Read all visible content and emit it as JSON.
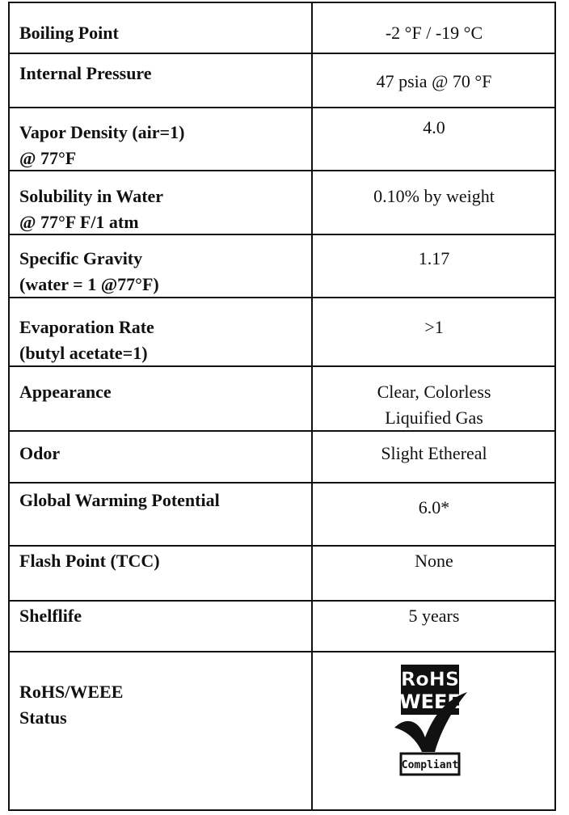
{
  "table": {
    "rows": [
      {
        "label": [
          "Boiling Point"
        ],
        "value": [
          "-2 °F / -19 °C"
        ]
      },
      {
        "label": [
          "Internal Pressure"
        ],
        "value": [
          "47 psia @ 70 °F"
        ]
      },
      {
        "label": [
          "Vapor Density (air=1)",
          "@ 77°F"
        ],
        "value": [
          "4.0"
        ]
      },
      {
        "label": [
          "Solubility in Water",
          "@ 77°F F/1 atm"
        ],
        "value": [
          "0.10% by weight"
        ]
      },
      {
        "label": [
          "Specific Gravity",
          "(water = 1 @77°F)"
        ],
        "value": [
          "1.17"
        ]
      },
      {
        "label": [
          "Evaporation Rate",
          "(butyl acetate=1)"
        ],
        "value": [
          ">1"
        ]
      },
      {
        "label": [
          "Appearance"
        ],
        "value": [
          "Clear, Colorless",
          "Liquified Gas"
        ]
      },
      {
        "label": [
          "Odor"
        ],
        "value": [
          "Slight Ethereal"
        ]
      },
      {
        "label": [
          "Global Warming Potential"
        ],
        "value": [
          "6.0*"
        ]
      },
      {
        "label": [
          "Flash Point (TCC)"
        ],
        "value": [
          "None"
        ]
      },
      {
        "label": [
          "Shelflife"
        ],
        "value": [
          "5 years"
        ]
      },
      {
        "label": [
          "RoHS/WEEE",
          "Status"
        ],
        "value": []
      }
    ],
    "logo": {
      "top": "RoHS",
      "middle": "WEEE",
      "badge": "Compliant"
    }
  }
}
